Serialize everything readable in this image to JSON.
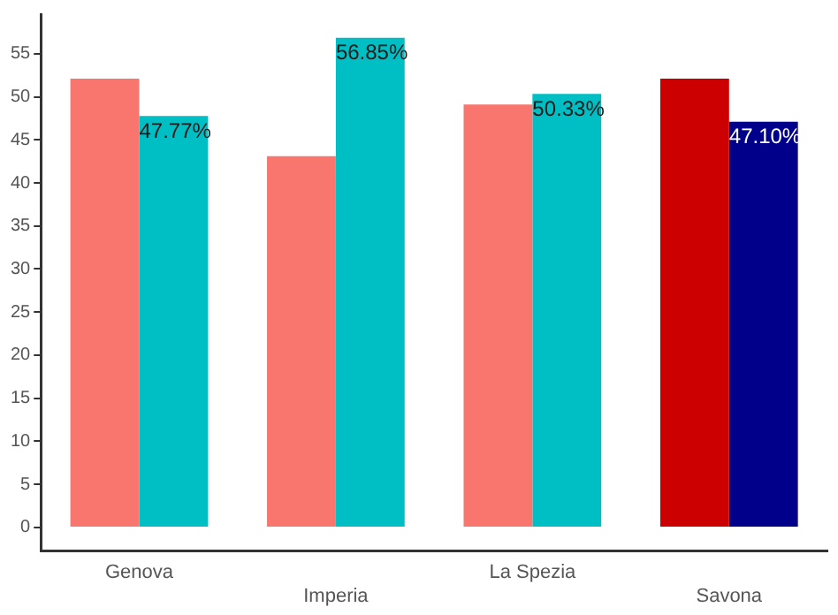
{
  "chart_data": {
    "type": "bar",
    "categories": [
      "Genova",
      "Imperia",
      "La Spezia",
      "Savona"
    ],
    "series": [
      {
        "colors": [
          "#f8766d",
          "#f8766d",
          "#f8766d",
          "#cc0000"
        ],
        "values": [
          52.1,
          43.1,
          49.1,
          52.1
        ]
      },
      {
        "colors": [
          "#00bfc4",
          "#00bfc4",
          "#00bfc4",
          "#00008b"
        ],
        "values": [
          47.77,
          56.85,
          50.33,
          47.1
        ],
        "value_labels": [
          "47.77%",
          "56.85%",
          "50.33%",
          "47.10%"
        ]
      }
    ],
    "ylim": [
      -2.7,
      59.6
    ],
    "yticks": [
      0,
      5,
      10,
      15,
      20,
      25,
      30,
      35,
      40,
      45,
      50,
      55
    ],
    "grid": false,
    "legend": false
  }
}
